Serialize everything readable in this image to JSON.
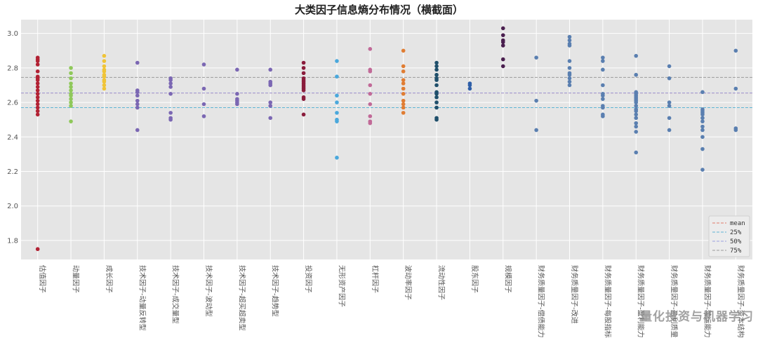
{
  "chart_data": {
    "type": "scatter",
    "title": "大类因子信息熵分布情况（横截面）",
    "xlabel": "",
    "ylabel": "",
    "ylim": [
      1.69,
      3.08
    ],
    "yticks": [
      1.8,
      2.0,
      2.2,
      2.4,
      2.6,
      2.8,
      3.0
    ],
    "grid": true,
    "legend_position": "bottom-right",
    "reference_lines": [
      {
        "name": "mean",
        "value": 2.655,
        "color": "#e07a6a"
      },
      {
        "name": "25%",
        "value": 2.57,
        "color": "#5fb5d5"
      },
      {
        "name": "50%",
        "value": 2.655,
        "color": "#9aa0e0"
      },
      {
        "name": "75%",
        "value": 2.745,
        "color": "#9a9a9a"
      }
    ],
    "categories": [
      "估值因子",
      "动量因子",
      "成长因子",
      "技术因子-动量反转型",
      "技术因子-成交量型",
      "技术因子-波动型",
      "技术因子-超买超卖型",
      "技术因子-趋势型",
      "投资因子",
      "无形资产因子",
      "杠杆因子",
      "波动率因子",
      "流动性因子",
      "股东因子",
      "规模因子",
      "财务质量因子-偿债能力",
      "财务质量因子-改进",
      "财务质量因子-每股指标",
      "财务质量因子-盈利能力",
      "财务质量因子-盈利质量",
      "财务质量因子-营运能力",
      "财务质量因子-资本结构"
    ],
    "series": [
      {
        "color": "#b22234",
        "values": [
          1.75,
          2.53,
          2.55,
          2.57,
          2.59,
          2.61,
          2.63,
          2.65,
          2.67,
          2.69,
          2.71,
          2.73,
          2.74,
          2.75,
          2.78,
          2.82,
          2.84,
          2.85,
          2.86
        ]
      },
      {
        "color": "#8fc85a",
        "values": [
          2.49,
          2.58,
          2.6,
          2.62,
          2.64,
          2.65,
          2.67,
          2.69,
          2.71,
          2.74,
          2.77,
          2.8
        ]
      },
      {
        "color": "#f0c438",
        "values": [
          2.68,
          2.7,
          2.72,
          2.73,
          2.75,
          2.76,
          2.78,
          2.79,
          2.81,
          2.84,
          2.87
        ]
      },
      {
        "color": "#7b67b3",
        "values": [
          2.44,
          2.57,
          2.59,
          2.61,
          2.64,
          2.66,
          2.67,
          2.83
        ]
      },
      {
        "color": "#7b67b3",
        "values": [
          2.5,
          2.51,
          2.54,
          2.65,
          2.69,
          2.71,
          2.73,
          2.74
        ]
      },
      {
        "color": "#7b67b3",
        "values": [
          2.52,
          2.59,
          2.68,
          2.82
        ]
      },
      {
        "color": "#7b67b3",
        "values": [
          2.59,
          2.6,
          2.61,
          2.62,
          2.65,
          2.79
        ]
      },
      {
        "color": "#7b67b3",
        "values": [
          2.51,
          2.58,
          2.6,
          2.7,
          2.71,
          2.72,
          2.79
        ]
      },
      {
        "color": "#8a1c3c",
        "values": [
          2.53,
          2.62,
          2.63,
          2.67,
          2.68,
          2.69,
          2.7,
          2.71,
          2.72,
          2.73,
          2.74,
          2.77,
          2.8,
          2.83
        ]
      },
      {
        "color": "#4aa8dc",
        "values": [
          2.28,
          2.49,
          2.5,
          2.54,
          2.6,
          2.64,
          2.75,
          2.84
        ]
      },
      {
        "color": "#c16a98",
        "values": [
          2.48,
          2.49,
          2.52,
          2.59,
          2.65,
          2.7,
          2.78,
          2.79,
          2.91
        ]
      },
      {
        "color": "#e07d33",
        "values": [
          2.54,
          2.57,
          2.59,
          2.61,
          2.65,
          2.68,
          2.71,
          2.73,
          2.78,
          2.81,
          2.9
        ]
      },
      {
        "color": "#1f4f6b",
        "values": [
          2.5,
          2.51,
          2.57,
          2.6,
          2.63,
          2.65,
          2.66,
          2.7,
          2.73,
          2.74,
          2.76,
          2.79,
          2.81,
          2.83
        ]
      },
      {
        "color": "#2f5fa8",
        "values": [
          2.68,
          2.7,
          2.71
        ]
      },
      {
        "color": "#4a1f4f",
        "values": [
          2.81,
          2.85,
          2.93,
          2.95,
          2.96,
          2.99,
          3.03
        ]
      },
      {
        "color": "#5a7fb0",
        "values": [
          2.44,
          2.61,
          2.86
        ]
      },
      {
        "color": "#5a7fb0",
        "values": [
          2.7,
          2.72,
          2.74,
          2.76,
          2.77,
          2.8,
          2.84,
          2.93,
          2.94,
          2.96,
          2.98
        ]
      },
      {
        "color": "#5a7fb0",
        "values": [
          2.52,
          2.53,
          2.57,
          2.58,
          2.62,
          2.64,
          2.65,
          2.7,
          2.79,
          2.84,
          2.86
        ]
      },
      {
        "color": "#5a7fb0",
        "values": [
          2.31,
          2.43,
          2.46,
          2.48,
          2.51,
          2.53,
          2.55,
          2.56,
          2.58,
          2.6,
          2.61,
          2.62,
          2.63,
          2.64,
          2.65,
          2.66,
          2.76,
          2.87
        ]
      },
      {
        "color": "#5a7fb0",
        "values": [
          2.44,
          2.51,
          2.58,
          2.6,
          2.74,
          2.81
        ]
      },
      {
        "color": "#5a7fb0",
        "values": [
          2.21,
          2.33,
          2.4,
          2.44,
          2.46,
          2.49,
          2.51,
          2.53,
          2.54,
          2.55,
          2.56,
          2.66
        ]
      },
      {
        "color": "#5a7fb0",
        "values": [
          2.44,
          2.45,
          2.68,
          2.9
        ]
      }
    ]
  },
  "watermark": "量化投资与机器学习"
}
